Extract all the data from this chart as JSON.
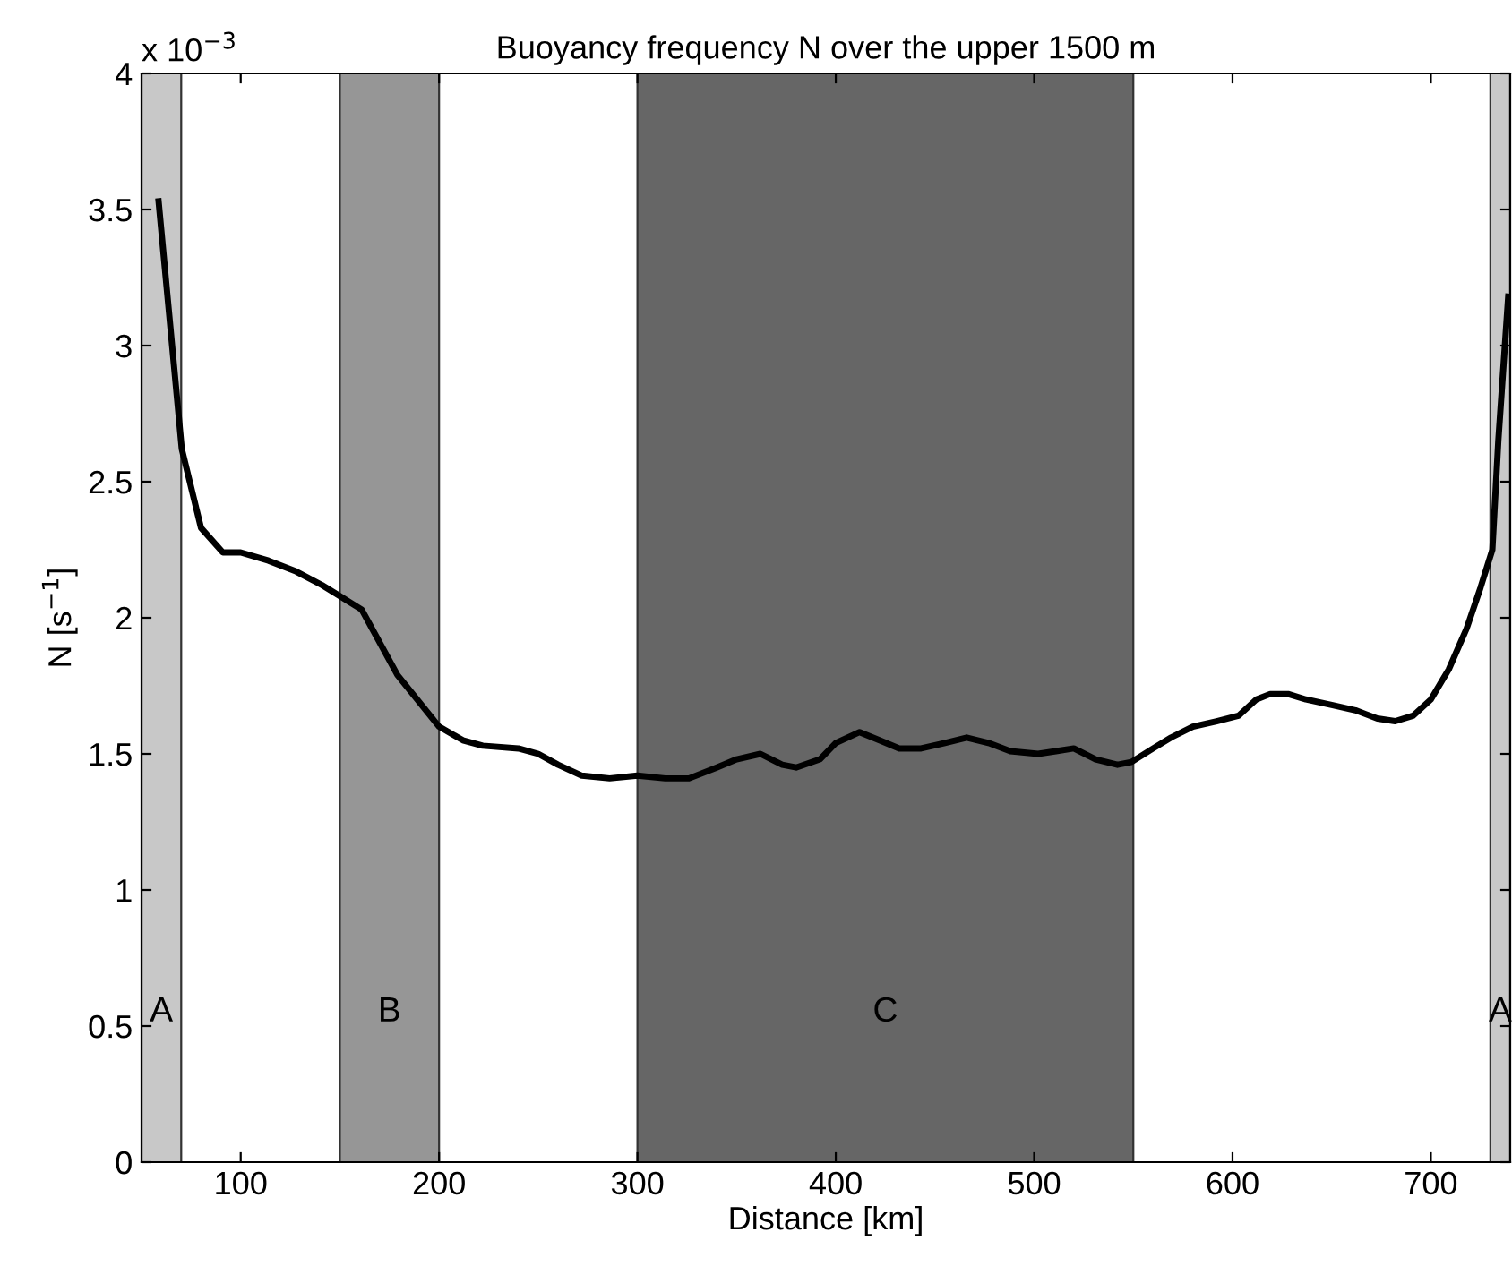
{
  "chart_data": {
    "type": "line",
    "title": "Buoyancy frequency N over the upper 1500 m",
    "xlabel": "Distance [km]",
    "ylabel": "N [s$^{−1}$]",
    "annotations": [
      "x 10$^{−3}$"
    ],
    "xlim": [
      50,
      740
    ],
    "xticks": [
      100,
      200,
      300,
      400,
      500,
      600,
      700
    ],
    "ylim": [
      0,
      4
    ],
    "yticks": [
      0,
      0.5,
      1,
      1.5,
      2,
      2.5,
      3,
      3.5,
      4
    ],
    "grid": false,
    "legend": false,
    "marker": "none",
    "line_style": "solid",
    "bands": [
      {
        "axis": "x",
        "from": 50,
        "to": 70,
        "label": "A",
        "color": "#c8c8c8"
      },
      {
        "axis": "x",
        "from": 150,
        "to": 200,
        "label": "B",
        "color": "#969696"
      },
      {
        "axis": "x",
        "from": 300,
        "to": 550,
        "label": "C",
        "color": "#666666"
      },
      {
        "axis": "x",
        "from": 730,
        "to": 740,
        "label": "A",
        "color": "#c8c8c8"
      }
    ],
    "series": [
      {
        "color": "#000000",
        "x": [
          58.6,
          70.3,
          80,
          91,
          100,
          114,
          128,
          141,
          150,
          161,
          179,
          200,
          212,
          222,
          240,
          250,
          260,
          272,
          286,
          300,
          314,
          326,
          340,
          350,
          362,
          373,
          380,
          392,
          400,
          412,
          422,
          432,
          443,
          455,
          466,
          477,
          488,
          502,
          511,
          520,
          531,
          542,
          549,
          560,
          569,
          580,
          592,
          603,
          612,
          619,
          628,
          637,
          650,
          662,
          673,
          682,
          691,
          700,
          709,
          718,
          725,
          731,
          734,
          739
        ],
        "values": [
          3.53,
          2.62,
          2.33,
          2.24,
          2.24,
          2.21,
          2.17,
          2.12,
          2.08,
          2.03,
          1.79,
          1.6,
          1.55,
          1.53,
          1.52,
          1.5,
          1.46,
          1.42,
          1.41,
          1.42,
          1.41,
          1.41,
          1.45,
          1.48,
          1.5,
          1.46,
          1.45,
          1.48,
          1.54,
          1.58,
          1.55,
          1.52,
          1.52,
          1.54,
          1.56,
          1.54,
          1.51,
          1.5,
          1.51,
          1.52,
          1.48,
          1.46,
          1.47,
          1.52,
          1.56,
          1.6,
          1.62,
          1.64,
          1.7,
          1.72,
          1.72,
          1.7,
          1.68,
          1.66,
          1.63,
          1.62,
          1.64,
          1.7,
          1.81,
          1.96,
          2.11,
          2.25,
          2.65,
          3.18
        ]
      }
    ]
  }
}
